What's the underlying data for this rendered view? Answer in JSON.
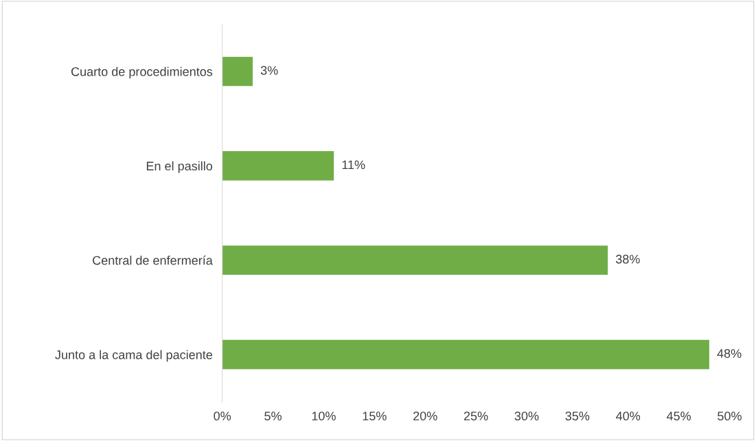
{
  "chart_data": {
    "type": "bar",
    "orientation": "horizontal",
    "categories": [
      "Cuarto de procedimientos",
      "En el pasillo",
      "Central de enfermería",
      "Junto a la cama del paciente"
    ],
    "values": [
      3,
      11,
      38,
      48
    ],
    "value_labels": [
      "3%",
      "11%",
      "38%",
      "48%"
    ],
    "color": "#70ad47",
    "xlim": [
      0,
      50
    ],
    "xticks": [
      {
        "value": 0,
        "label": "0%"
      },
      {
        "value": 5,
        "label": "5%"
      },
      {
        "value": 10,
        "label": "10%"
      },
      {
        "value": 15,
        "label": "15%"
      },
      {
        "value": 20,
        "label": "20%"
      },
      {
        "value": 25,
        "label": "25%"
      },
      {
        "value": 30,
        "label": "30%"
      },
      {
        "value": 35,
        "label": "35%"
      },
      {
        "value": 40,
        "label": "40%"
      },
      {
        "value": 45,
        "label": "45%"
      },
      {
        "value": 50,
        "label": "50%"
      }
    ],
    "grid": false,
    "legend": false
  }
}
